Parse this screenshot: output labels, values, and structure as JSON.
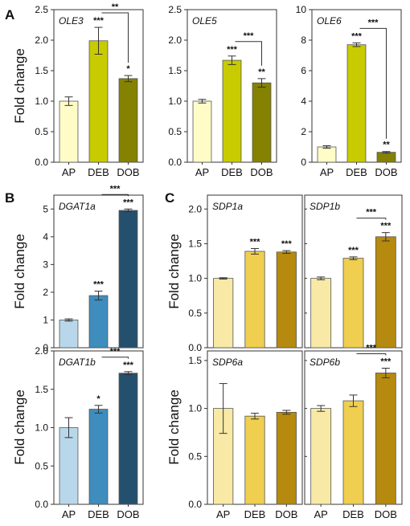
{
  "chart_data": [
    {
      "panel_letter": "A",
      "title": "OLE3",
      "type": "bar",
      "ylabel": "Fold change",
      "categories": [
        "AP",
        "DEB",
        "DOB"
      ],
      "values": [
        1.0,
        1.99,
        1.37
      ],
      "errors": [
        0.07,
        0.22,
        0.05
      ],
      "ylim": [
        0,
        2.5
      ],
      "yticks": [
        "0.0",
        "0.5",
        "1.0",
        "1.5",
        "2.0",
        "2.5"
      ],
      "colors": [
        "#FFFCC8",
        "#C8CB00",
        "#848200"
      ],
      "stars": [
        "",
        "***",
        "*"
      ],
      "comparison": {
        "from": 1,
        "to": 2,
        "label": "**"
      }
    },
    {
      "title": "OLE5",
      "type": "bar",
      "ylabel": "",
      "categories": [
        "AP",
        "DEB",
        "DOB"
      ],
      "values": [
        1.0,
        1.67,
        1.3
      ],
      "errors": [
        0.03,
        0.07,
        0.07
      ],
      "ylim": [
        0,
        2.5
      ],
      "yticks": [
        "0.0",
        "0.5",
        "1.0",
        "1.5",
        "2.0",
        "2.5"
      ],
      "colors": [
        "#FFFCC8",
        "#C8CB00",
        "#848200"
      ],
      "stars": [
        "",
        "***",
        "**"
      ],
      "comparison": {
        "from": 1,
        "to": 2,
        "label": "***"
      }
    },
    {
      "title": "OLE6",
      "type": "bar",
      "ylabel": "",
      "categories": [
        "AP",
        "DEB",
        "DOB"
      ],
      "values": [
        1.0,
        7.7,
        0.65
      ],
      "errors": [
        0.08,
        0.12,
        0.05
      ],
      "ylim": [
        0,
        10
      ],
      "yticks": [
        "0",
        "2",
        "4",
        "6",
        "8",
        "10"
      ],
      "colors": [
        "#FFFCC8",
        "#C8CB00",
        "#848200"
      ],
      "stars": [
        "",
        "***",
        "**"
      ],
      "comparison": {
        "from": 1,
        "to": 2,
        "label": "***"
      }
    },
    {
      "panel_letter": "B",
      "title": "DGAT1a",
      "type": "bar",
      "ylabel": "Fold change",
      "categories": [
        "AP",
        "DEB",
        "DOB"
      ],
      "values": [
        1.0,
        1.88,
        4.95
      ],
      "errors": [
        0.04,
        0.16,
        0.05
      ],
      "ylim": [
        0,
        5.5
      ],
      "yticks": [
        "0",
        "1",
        "2",
        "3",
        "4",
        "5"
      ],
      "colors": [
        "#B9D7EA",
        "#3E8DBD",
        "#24506E"
      ],
      "stars": [
        "",
        "***",
        "***"
      ],
      "comparison": {
        "from": 1,
        "to": 2,
        "label": "***"
      }
    },
    {
      "title": "DGAT1b",
      "type": "bar",
      "ylabel": "Fold change",
      "categories": [
        "AP",
        "DEB",
        "DOB"
      ],
      "values": [
        1.0,
        1.24,
        1.71
      ],
      "errors": [
        0.13,
        0.05,
        0.02
      ],
      "ylim": [
        0,
        2.0
      ],
      "yticks": [
        "0.0",
        "0.5",
        "1.0",
        "1.5",
        "2.0"
      ],
      "colors": [
        "#B9D7EA",
        "#3E8DBD",
        "#24506E"
      ],
      "stars": [
        "*",
        "***"
      ],
      "star_index": [
        1,
        2
      ],
      "comparison": {
        "from": 1,
        "to": 2,
        "label": "***"
      }
    },
    {
      "panel_letter": "C",
      "title": "SDP1a",
      "type": "bar",
      "ylabel": "Fold change",
      "categories": [
        "AP",
        "DEB",
        "DOB"
      ],
      "values": [
        1.0,
        1.39,
        1.38
      ],
      "errors": [
        0.01,
        0.04,
        0.02
      ],
      "ylim": [
        0,
        2.2
      ],
      "yticks": [
        "0.0",
        "0.5",
        "1.0",
        "1.5",
        "2.0"
      ],
      "colors": [
        "#F8E9A6",
        "#EFCE50",
        "#B58A0F"
      ],
      "stars": [
        "",
        "***",
        "***"
      ]
    },
    {
      "title": "SDP1b",
      "type": "bar",
      "ylabel": "",
      "categories": [
        "AP",
        "DEB",
        "DOB"
      ],
      "values": [
        1.0,
        1.29,
        1.6
      ],
      "errors": [
        0.02,
        0.02,
        0.06
      ],
      "ylim": [
        0,
        2.2
      ],
      "yticks": [],
      "colors": [
        "#F8E9A6",
        "#EFCE50",
        "#B58A0F"
      ],
      "stars": [
        "",
        "***",
        "***"
      ],
      "comparison": {
        "from": 1,
        "to": 2,
        "label": "***"
      }
    },
    {
      "title": "SDP6a",
      "type": "bar",
      "ylabel": "Fold change",
      "categories": [
        "AP",
        "DEB",
        "DOB"
      ],
      "values": [
        1.0,
        0.92,
        0.96
      ],
      "errors": [
        0.26,
        0.03,
        0.02
      ],
      "ylim": [
        0,
        1.6
      ],
      "yticks": [
        "0.0",
        "0.5",
        "1.0",
        "1.5"
      ],
      "colors": [
        "#F8E9A6",
        "#EFCE50",
        "#B58A0F"
      ],
      "stars": []
    },
    {
      "title": "SDP6b",
      "type": "bar",
      "ylabel": "",
      "categories": [
        "AP",
        "DEB",
        "DOB"
      ],
      "values": [
        1.0,
        1.08,
        1.37
      ],
      "errors": [
        0.03,
        0.06,
        0.05
      ],
      "ylim": [
        0,
        1.6
      ],
      "yticks": [],
      "colors": [
        "#F8E9A6",
        "#EFCE50",
        "#B58A0F"
      ],
      "stars": [
        "",
        "",
        "***"
      ],
      "comparison": {
        "from": 1,
        "to": 2,
        "label": "***"
      }
    }
  ]
}
